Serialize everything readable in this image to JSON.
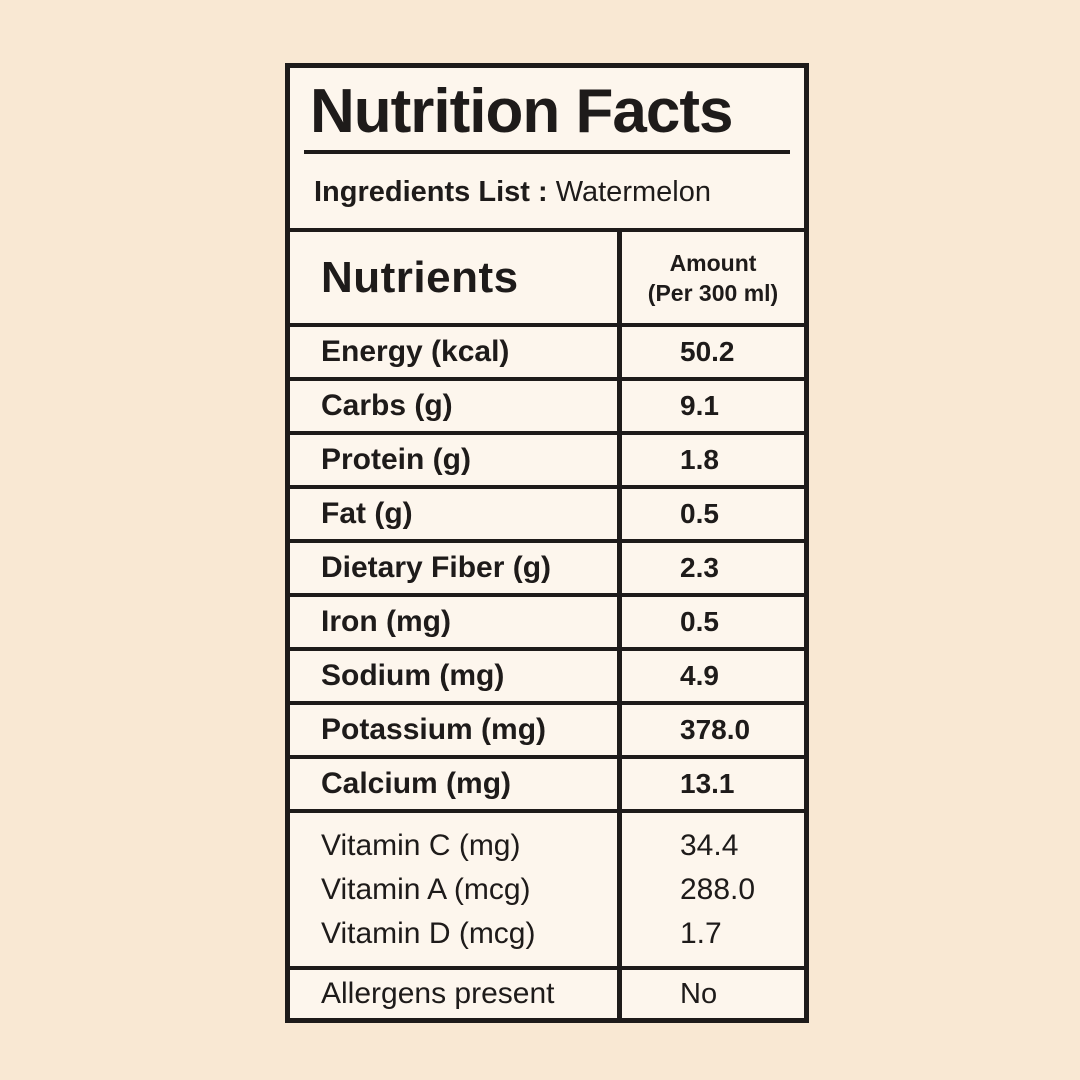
{
  "colors": {
    "page_bg": "#f9e8d3",
    "card_bg": "#fdf6ed",
    "ink": "#1e1b1a"
  },
  "title": "Nutrition Facts",
  "ingredients": {
    "label": "Ingredients List :",
    "value": "Watermelon"
  },
  "table": {
    "nutrients_header": "Nutrients",
    "amount_header_line1": "Amount",
    "amount_header_line2": "(Per 300 ml)",
    "rows": [
      {
        "label": "Energy (kcal)",
        "value": "50.2"
      },
      {
        "label": "Carbs (g)",
        "value": "9.1"
      },
      {
        "label": "Protein (g)",
        "value": "1.8"
      },
      {
        "label": "Fat (g)",
        "value": "0.5"
      },
      {
        "label": "Dietary Fiber (g)",
        "value": "2.3"
      },
      {
        "label": "Iron (mg)",
        "value": "0.5"
      },
      {
        "label": "Sodium (mg)",
        "value": "4.9"
      },
      {
        "label": "Potassium (mg)",
        "value": "378.0"
      },
      {
        "label": "Calcium (mg)",
        "value": "13.1"
      }
    ],
    "vitamins": [
      {
        "label": "Vitamin C (mg)",
        "value": "34.4"
      },
      {
        "label": "Vitamin A (mcg)",
        "value": "288.0"
      },
      {
        "label": "Vitamin D (mcg)",
        "value": "1.7"
      }
    ],
    "allergens": {
      "label": "Allergens present",
      "value": "No"
    }
  },
  "chart_data": {
    "type": "table",
    "title": "Nutrition Facts",
    "subtitle": "Ingredients List : Watermelon",
    "columns": [
      "Nutrients",
      "Amount (Per 300 ml)"
    ],
    "rows": [
      [
        "Energy (kcal)",
        50.2
      ],
      [
        "Carbs (g)",
        9.1
      ],
      [
        "Protein (g)",
        1.8
      ],
      [
        "Fat (g)",
        0.5
      ],
      [
        "Dietary Fiber (g)",
        2.3
      ],
      [
        "Iron (mg)",
        0.5
      ],
      [
        "Sodium (mg)",
        4.9
      ],
      [
        "Potassium (mg)",
        378.0
      ],
      [
        "Calcium (mg)",
        13.1
      ],
      [
        "Vitamin C (mg)",
        34.4
      ],
      [
        "Vitamin A (mcg)",
        288.0
      ],
      [
        "Vitamin D (mcg)",
        1.7
      ],
      [
        "Allergens present",
        "No"
      ]
    ]
  }
}
